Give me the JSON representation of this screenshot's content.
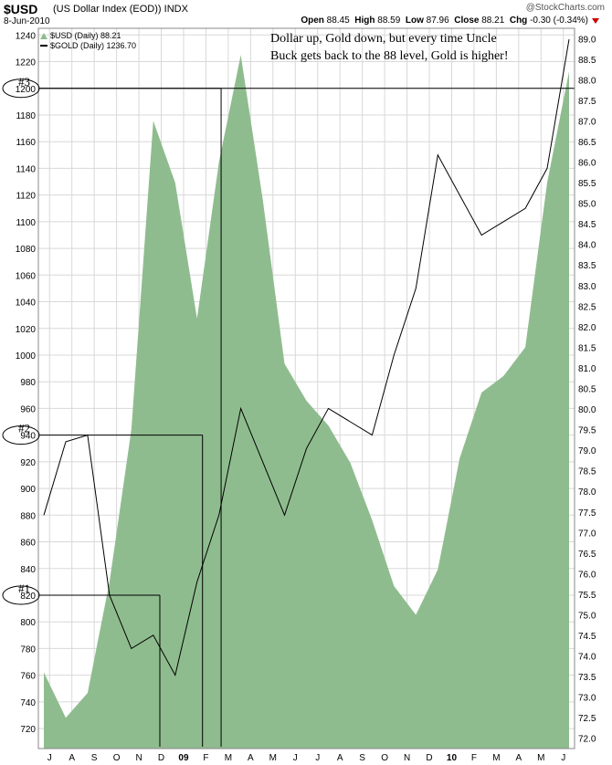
{
  "header": {
    "symbol": "$USD",
    "description": "(US Dollar Index (EOD))",
    "exchange": "INDX",
    "date": "8-Jun-2010",
    "copyright": "@StockCharts.com",
    "open_label": "Open",
    "open": "88.45",
    "high_label": "High",
    "high": "88.59",
    "low_label": "Low",
    "low": "87.96",
    "close_label": "Close",
    "close": "88.21",
    "chg_label": "Chg",
    "chg": "-0.30 (-0.34%)"
  },
  "legend": [
    {
      "label": "$USD (Daily) 88.21",
      "color": "#8fbc8f",
      "kind": "area"
    },
    {
      "label": "$GOLD (Daily) 1236.70",
      "color": "#000000",
      "kind": "line"
    }
  ],
  "annotation": "Dollar up, Gold down, but every time Uncle Buck gets back to the 88 level, Gold is higher!",
  "markers": [
    {
      "label": "#1",
      "circled_value": "820"
    },
    {
      "label": "#2",
      "circled_value": "940"
    },
    {
      "label": "#3",
      "circled_value": "1200"
    }
  ],
  "colors": {
    "usd_fill": "#8fbc8f",
    "gold_line": "#000000",
    "grid": "#d8d8d8",
    "chg_down": "#cc0000"
  },
  "chart_data": {
    "type": "area",
    "x_tick_labels": [
      "J",
      "A",
      "S",
      "O",
      "N",
      "D",
      "09",
      "F",
      "M",
      "A",
      "M",
      "J",
      "J",
      "A",
      "S",
      "O",
      "N",
      "D",
      "10",
      "F",
      "M",
      "A",
      "M",
      "J"
    ],
    "left_axis": {
      "ticks": [
        720,
        740,
        760,
        780,
        800,
        820,
        840,
        860,
        880,
        900,
        920,
        940,
        960,
        980,
        1000,
        1020,
        1040,
        1060,
        1080,
        1100,
        1120,
        1140,
        1160,
        1180,
        1200,
        1220,
        1240
      ],
      "ylim": [
        705,
        1245
      ]
    },
    "right_axis": {
      "ticks": [
        "72.0",
        "72.5",
        "73.0",
        "73.5",
        "74.0",
        "74.5",
        "75.0",
        "75.5",
        "76.0",
        "76.5",
        "77.0",
        "77.5",
        "78.0",
        "78.5",
        "79.0",
        "79.5",
        "80.0",
        "80.5",
        "81.0",
        "81.5",
        "82.0",
        "82.5",
        "83.0",
        "83.5",
        "84.0",
        "84.5",
        "85.0",
        "85.5",
        "86.0",
        "86.5",
        "87.0",
        "87.5",
        "88.0",
        "88.5",
        "89.0"
      ],
      "ylim": [
        71.75,
        89.25
      ]
    },
    "x": [
      "Jun-08",
      "Jul-08",
      "Aug-08",
      "Sep-08",
      "Oct-08",
      "Nov-08",
      "Dec-08",
      "Jan-09",
      "Feb-09",
      "Mar-09",
      "Apr-09",
      "May-09",
      "Jun-09",
      "Jul-09",
      "Aug-09",
      "Sep-09",
      "Oct-09",
      "Nov-09",
      "Dec-09",
      "Jan-10",
      "Feb-10",
      "Mar-10",
      "Apr-10",
      "May-10",
      "Jun-10"
    ],
    "series": [
      {
        "name": "$USD (Daily) 88.21",
        "axis": "right",
        "style": "area",
        "values": [
          73.6,
          72.5,
          73.1,
          75.8,
          79.5,
          87.0,
          85.5,
          82.2,
          86.0,
          88.6,
          85.1,
          81.1,
          80.2,
          79.6,
          78.7,
          77.3,
          75.7,
          75.0,
          76.1,
          78.8,
          80.4,
          80.8,
          81.5,
          85.5,
          88.2
        ]
      },
      {
        "name": "$GOLD (Daily) 1236.70",
        "axis": "left",
        "style": "line",
        "values": [
          880,
          935,
          940,
          820,
          780,
          790,
          760,
          830,
          880,
          960,
          920,
          880,
          930,
          960,
          950,
          940,
          1000,
          1050,
          1150,
          1120,
          1090,
          1100,
          1110,
          1140,
          1236.7
        ]
      }
    ]
  }
}
